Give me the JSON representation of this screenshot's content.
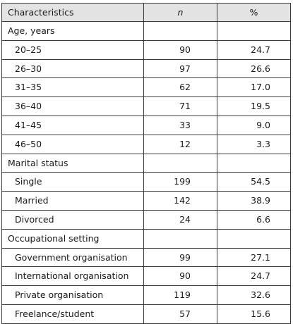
{
  "table": {
    "headers": {
      "characteristics": "Characteristics",
      "n": "n",
      "percent": "%"
    },
    "groups": [
      {
        "label": "Age, years",
        "rows": [
          {
            "label": "20–25",
            "n": "90",
            "pct": "24.7"
          },
          {
            "label": "26–30",
            "n": "97",
            "pct": "26.6"
          },
          {
            "label": "31–35",
            "n": "62",
            "pct": "17.0"
          },
          {
            "label": "36–40",
            "n": "71",
            "pct": "19.5"
          },
          {
            "label": "41–45",
            "n": "33",
            "pct": "9.0"
          },
          {
            "label": "46–50",
            "n": "12",
            "pct": "3.3"
          }
        ]
      },
      {
        "label": "Marital status",
        "rows": [
          {
            "label": "Single",
            "n": "199",
            "pct": "54.5"
          },
          {
            "label": "Married",
            "n": "142",
            "pct": "38.9"
          },
          {
            "label": "Divorced",
            "n": "24",
            "pct": "6.6"
          }
        ]
      },
      {
        "label": "Occupational setting",
        "rows": [
          {
            "label": "Government organisation",
            "n": "99",
            "pct": "27.1"
          },
          {
            "label": "International organisation",
            "n": "90",
            "pct": "24.7"
          },
          {
            "label": "Private organisation",
            "n": "119",
            "pct": "32.6"
          },
          {
            "label": "Freelance/student",
            "n": "57",
            "pct": "15.6"
          }
        ]
      }
    ]
  },
  "colors": {
    "header_background": "#e3e3e3",
    "border": "#3a3a3a",
    "text": "#1a1a1a"
  }
}
